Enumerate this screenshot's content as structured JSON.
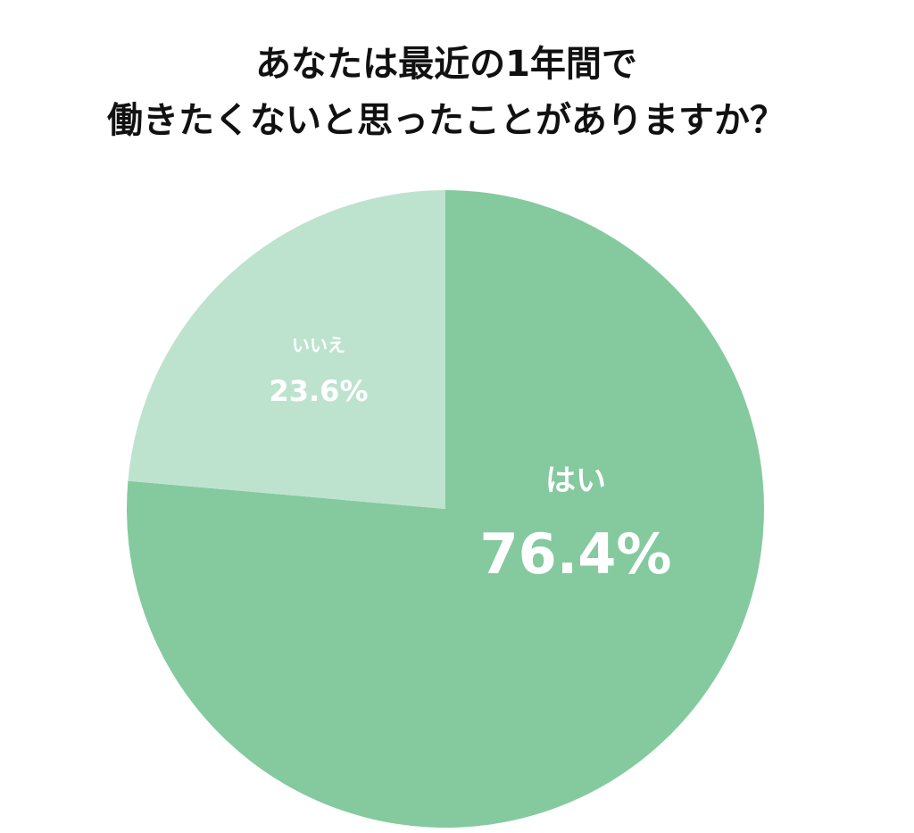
{
  "chart_data": {
    "type": "pie",
    "title": [
      "あなたは最近の1年間で",
      "働きたくないと思ったことがありますか？"
    ],
    "categories": [
      "はい",
      "いいえ"
    ],
    "values": [
      76.4,
      23.6
    ],
    "value_labels": [
      "76.4%",
      "23.6%"
    ],
    "colors": [
      "#84ca9e",
      "#bde3cf"
    ]
  }
}
